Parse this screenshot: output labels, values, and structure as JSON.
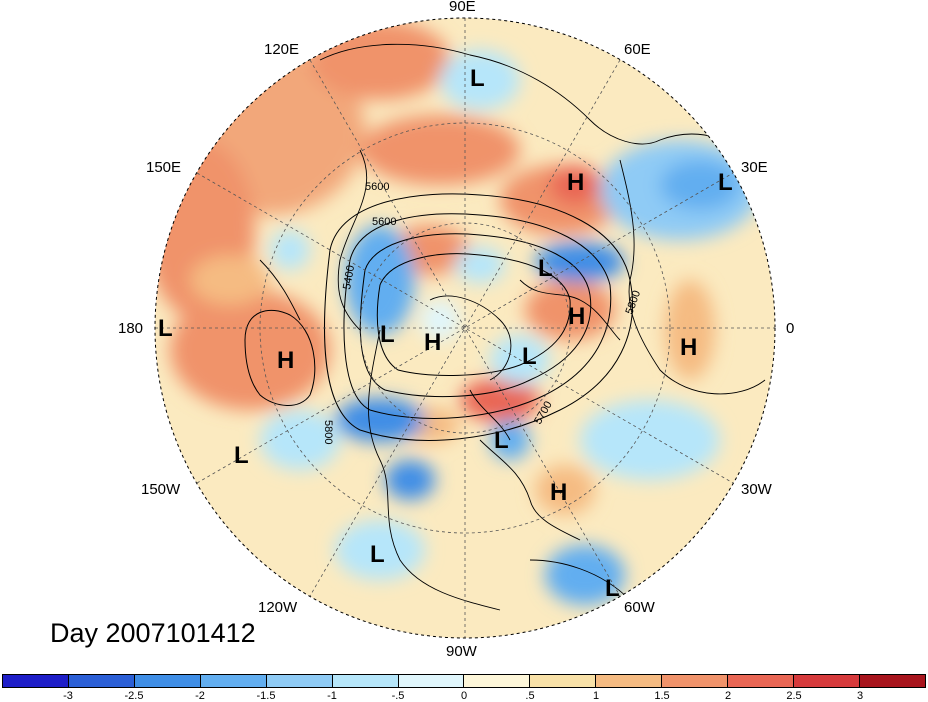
{
  "map": {
    "projection": "polar stereographic, northern hemisphere",
    "longitude_labels": [
      "90E",
      "60E",
      "30E",
      "0",
      "30W",
      "60W",
      "90W",
      "120W",
      "150W",
      "180",
      "150E",
      "120E"
    ],
    "contour_labels": [
      "5600",
      "5600",
      "5400",
      "5800",
      "5800",
      "5700"
    ],
    "pressure_centers": [
      {
        "symbol": "L",
        "region": "Siberia north"
      },
      {
        "symbol": "H",
        "region": "Caspian area"
      },
      {
        "symbol": "L",
        "region": "Eastern Europe"
      },
      {
        "symbol": "L",
        "region": "Barents sea"
      },
      {
        "symbol": "H",
        "region": "Scandinavia"
      },
      {
        "symbol": "H",
        "region": "North Africa"
      },
      {
        "symbol": "L",
        "region": "Dateline"
      },
      {
        "symbol": "H",
        "region": "North Pacific"
      },
      {
        "symbol": "L",
        "region": "Alaska"
      },
      {
        "symbol": "H",
        "region": "Pole"
      },
      {
        "symbol": "L",
        "region": "Greenland"
      },
      {
        "symbol": "L",
        "region": "Great Lakes"
      },
      {
        "symbol": "H",
        "region": "Atlantic"
      },
      {
        "symbol": "L",
        "region": "Hawaii"
      },
      {
        "symbol": "L",
        "region": "East Pacific"
      },
      {
        "symbol": "L",
        "region": "South America"
      }
    ]
  },
  "date_label": "Day 2007101412",
  "colorbar": {
    "colors": [
      "#1e1ec8",
      "#2b5fd6",
      "#3f8ee6",
      "#62aef0",
      "#8fcbf5",
      "#b6e6fa",
      "#e0f6fc",
      "#fdf6d9",
      "#f8e1a8",
      "#f5bb82",
      "#f0936b",
      "#e96654",
      "#d63a3c",
      "#a8151d"
    ],
    "ticks": [
      "-3",
      "-2.5",
      "-2",
      "-1.5",
      "-1",
      "-.5",
      "0",
      ".5",
      "1",
      "1.5",
      "2",
      "2.5",
      "3"
    ]
  }
}
